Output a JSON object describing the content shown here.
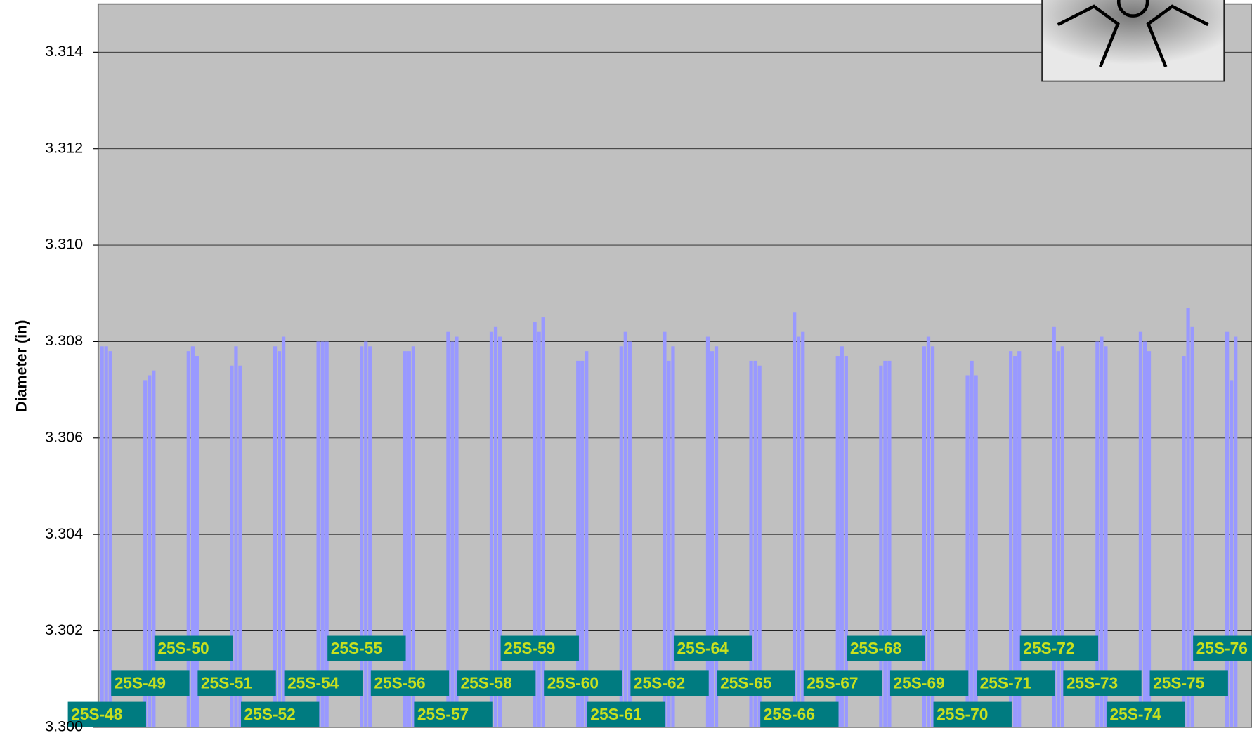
{
  "chart_data": {
    "type": "bar",
    "y_label": "Diameter (in)",
    "categories": [
      "25S-48",
      "25S-49",
      "25S-50",
      "25S-51",
      "25S-52",
      "25S-54",
      "25S-55",
      "25S-56",
      "25S-57",
      "25S-58",
      "25S-59",
      "25S-60",
      "25S-61",
      "25S-62",
      "25S-64",
      "25S-65",
      "25S-66",
      "25S-67",
      "25S-68",
      "25S-69",
      "25S-70",
      "25S-71",
      "25S-72",
      "25S-73",
      "25S-74",
      "25S-75",
      "25S-76"
    ],
    "series": [
      {
        "color": "#9999ff",
        "values": [
          3.3079,
          3.3072,
          3.3078,
          3.3075,
          3.3079,
          3.308,
          3.3079,
          3.3078,
          3.3082,
          3.3082,
          3.3084,
          3.3076,
          3.3079,
          3.3082,
          3.3081,
          3.3076,
          3.3086,
          3.3077,
          3.3075,
          3.3079,
          3.3073,
          3.3078,
          3.3083,
          3.308,
          3.3082,
          3.3077,
          3.3082
        ]
      },
      {
        "color": "#9999ff",
        "values": [
          3.3079,
          3.3073,
          3.3079,
          3.3079,
          3.3078,
          3.308,
          3.308,
          3.3078,
          3.308,
          3.3083,
          3.3082,
          3.3076,
          3.3082,
          3.3076,
          3.3078,
          3.3076,
          3.3081,
          3.3079,
          3.3076,
          3.3081,
          3.3076,
          3.3077,
          3.3078,
          3.3081,
          3.308,
          3.3087,
          3.3072
        ]
      },
      {
        "color": "#9999ff",
        "values": [
          3.3078,
          3.3074,
          3.3077,
          3.3075,
          3.3081,
          3.308,
          3.3079,
          3.3079,
          3.3081,
          3.3081,
          3.3085,
          3.3078,
          3.308,
          3.3079,
          3.3079,
          3.3075,
          3.3082,
          3.3077,
          3.3076,
          3.3079,
          3.3073,
          3.3078,
          3.3079,
          3.3079,
          3.3078,
          3.3083,
          3.3081
        ]
      }
    ],
    "ylim": [
      3.3,
      3.315
    ],
    "yticks": [
      {
        "value": 3.3,
        "label": "3.300"
      },
      3.302,
      3.304,
      3.306,
      3.308,
      {
        "value": 3.31,
        "label": "3.310"
      },
      3.312,
      3.314
    ],
    "grid": true,
    "plot_background": "#c0c0c0",
    "label_box_color": "#007b80"
  }
}
